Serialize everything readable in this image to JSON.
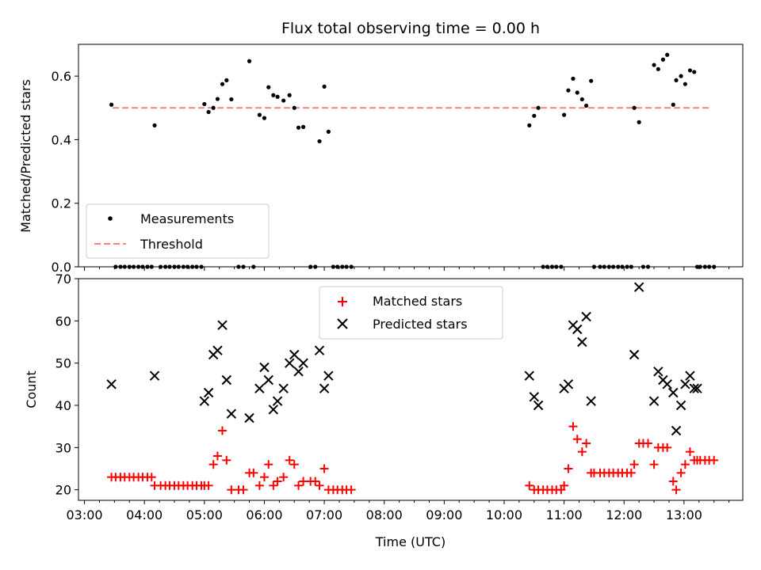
{
  "chart_data": [
    {
      "type": "scatter",
      "title": "Flux total observing time = 0.00 h",
      "xlabel": "",
      "ylabel": "Matched/Predicted stars",
      "xlim": [
        2.9,
        13.98
      ],
      "ylim": [
        0.0,
        0.7
      ],
      "yticks": [
        0.0,
        0.2,
        0.4,
        0.6
      ],
      "ytick_labels": [
        "0.0",
        "0.2",
        "0.4",
        "0.6"
      ],
      "legend": {
        "placement": "lower-left",
        "entries": [
          "Measurements",
          "Threshold"
        ]
      },
      "colors": {
        "measurements": "#000000",
        "threshold": "#ff8080"
      },
      "threshold": {
        "x": [
          3.47,
          13.42
        ],
        "y": 0.5
      },
      "series": [
        {
          "name": "Measurements",
          "x": [
            3.45,
            3.52,
            3.6,
            3.67,
            3.75,
            3.82,
            3.9,
            3.97,
            4.05,
            4.12,
            4.17,
            4.27,
            4.35,
            4.42,
            4.5,
            4.57,
            4.65,
            4.72,
            4.8,
            4.87,
            4.95,
            5.0,
            5.07,
            5.15,
            5.22,
            5.3,
            5.37,
            5.45,
            5.57,
            5.65,
            5.75,
            5.82,
            5.92,
            6.0,
            6.07,
            6.15,
            6.22,
            6.32,
            6.42,
            6.5,
            6.57,
            6.65,
            6.77,
            6.85,
            6.92,
            7.0,
            7.07,
            7.15,
            7.22,
            7.3,
            7.37,
            7.45,
            10.42,
            10.5,
            10.57,
            10.65,
            10.72,
            10.8,
            10.87,
            10.95,
            11.0,
            11.07,
            11.15,
            11.22,
            11.3,
            11.37,
            11.45,
            11.5,
            11.6,
            11.67,
            11.75,
            11.82,
            11.9,
            11.97,
            12.05,
            12.12,
            12.17,
            12.25,
            12.32,
            12.4,
            12.5,
            12.57,
            12.65,
            12.72,
            12.82,
            12.87,
            12.95,
            13.02,
            13.1,
            13.17,
            13.22,
            13.27,
            13.35,
            13.42,
            13.5
          ],
          "y": [
            0.51,
            0.0,
            0.0,
            0.0,
            0.0,
            0.0,
            0.0,
            0.0,
            0.0,
            0.0,
            0.445,
            0.0,
            0.0,
            0.0,
            0.0,
            0.0,
            0.0,
            0.0,
            0.0,
            0.0,
            0.0,
            0.512,
            0.487,
            0.5,
            0.528,
            0.575,
            0.587,
            0.527,
            0.0,
            0.0,
            0.647,
            0.0,
            0.478,
            0.468,
            0.565,
            0.54,
            0.535,
            0.523,
            0.54,
            0.5,
            0.438,
            0.44,
            0.0,
            0.0,
            0.395,
            0.567,
            0.425,
            0.0,
            0.0,
            0.0,
            0.0,
            0.0,
            0.445,
            0.475,
            0.5,
            0.0,
            0.0,
            0.0,
            0.0,
            0.0,
            0.478,
            0.555,
            0.592,
            0.548,
            0.527,
            0.507,
            0.585,
            0.0,
            0.0,
            0.0,
            0.0,
            0.0,
            0.0,
            0.0,
            0.0,
            0.0,
            0.5,
            0.455,
            0.0,
            0.0,
            0.635,
            0.622,
            0.652,
            0.667,
            0.51,
            0.587,
            0.6,
            0.575,
            0.618,
            0.613,
            0.0,
            0.0,
            0.0,
            0.0,
            0.0
          ]
        }
      ]
    },
    {
      "type": "scatter",
      "title": "",
      "xlabel": "Time (UTC)",
      "ylabel": "Count",
      "xlim": [
        2.9,
        13.98
      ],
      "ylim": [
        17.5,
        70
      ],
      "xticks": [
        3,
        4,
        5,
        6,
        7,
        8,
        9,
        10,
        11,
        12,
        13
      ],
      "xtick_labels": [
        "03:00",
        "04:00",
        "05:00",
        "06:00",
        "07:00",
        "08:00",
        "09:00",
        "10:00",
        "11:00",
        "12:00",
        "13:00"
      ],
      "yticks": [
        20,
        30,
        40,
        50,
        60,
        70
      ],
      "ytick_labels": [
        "20",
        "30",
        "40",
        "50",
        "60",
        "70"
      ],
      "legend": {
        "placement": "upper-center",
        "entries": [
          "Matched stars",
          "Predicted stars"
        ]
      },
      "colors": {
        "matched": "#ff0000",
        "predicted": "#000000"
      },
      "series": [
        {
          "name": "Matched stars",
          "marker": "plus",
          "x": [
            3.45,
            3.52,
            3.6,
            3.67,
            3.75,
            3.82,
            3.9,
            3.97,
            4.05,
            4.12,
            4.17,
            4.27,
            4.35,
            4.42,
            4.5,
            4.57,
            4.65,
            4.72,
            4.8,
            4.87,
            4.95,
            5.0,
            5.07,
            5.15,
            5.22,
            5.3,
            5.37,
            5.45,
            5.57,
            5.65,
            5.75,
            5.82,
            5.92,
            6.0,
            6.07,
            6.15,
            6.22,
            6.32,
            6.42,
            6.5,
            6.57,
            6.65,
            6.77,
            6.85,
            6.92,
            7.0,
            7.07,
            7.15,
            7.22,
            7.3,
            7.37,
            7.45,
            10.42,
            10.5,
            10.57,
            10.65,
            10.72,
            10.8,
            10.87,
            10.95,
            11.0,
            11.07,
            11.15,
            11.22,
            11.3,
            11.37,
            11.45,
            11.5,
            11.6,
            11.67,
            11.75,
            11.82,
            11.9,
            11.97,
            12.05,
            12.12,
            12.17,
            12.25,
            12.32,
            12.4,
            12.5,
            12.57,
            12.65,
            12.72,
            12.82,
            12.87,
            12.95,
            13.02,
            13.1,
            13.17,
            13.22,
            13.27,
            13.35,
            13.42,
            13.5
          ],
          "y": [
            23,
            23,
            23,
            23,
            23,
            23,
            23,
            23,
            23,
            23,
            21,
            21,
            21,
            21,
            21,
            21,
            21,
            21,
            21,
            21,
            21,
            21,
            21,
            26,
            28,
            34,
            27,
            20,
            20,
            20,
            24,
            24,
            21,
            23,
            26,
            21,
            22,
            23,
            27,
            26,
            21,
            22,
            22,
            22,
            21,
            25,
            20,
            20,
            20,
            20,
            20,
            20,
            21,
            20,
            20,
            20,
            20,
            20,
            20,
            20,
            21,
            25,
            35,
            32,
            29,
            31,
            24,
            24,
            24,
            24,
            24,
            24,
            24,
            24,
            24,
            24,
            26,
            31,
            31,
            31,
            26,
            30,
            30,
            30,
            22,
            20,
            24,
            26,
            29,
            27,
            27,
            27,
            27,
            27,
            27
          ]
        },
        {
          "name": "Predicted stars",
          "marker": "x",
          "x": [
            3.45,
            4.17,
            5.0,
            5.07,
            5.15,
            5.22,
            5.3,
            5.37,
            5.45,
            5.75,
            5.92,
            6.0,
            6.07,
            6.15,
            6.22,
            6.32,
            6.42,
            6.5,
            6.57,
            6.65,
            6.92,
            7.0,
            7.07,
            10.42,
            10.5,
            10.57,
            11.0,
            11.07,
            11.15,
            11.22,
            11.3,
            11.37,
            11.45,
            12.17,
            12.25,
            12.5,
            12.57,
            12.65,
            12.72,
            12.82,
            12.87,
            12.95,
            13.02,
            13.1,
            13.17,
            13.22
          ],
          "y": [
            45,
            47,
            41,
            43,
            52,
            53,
            59,
            46,
            38,
            37,
            44,
            49,
            46,
            39,
            41,
            44,
            50,
            52,
            48,
            50,
            53,
            44,
            47,
            47,
            42,
            40,
            44,
            45,
            59,
            58,
            55,
            61,
            41,
            52,
            68,
            41,
            48,
            46,
            45,
            43,
            34,
            40,
            45,
            47,
            44,
            44
          ]
        }
      ]
    }
  ]
}
